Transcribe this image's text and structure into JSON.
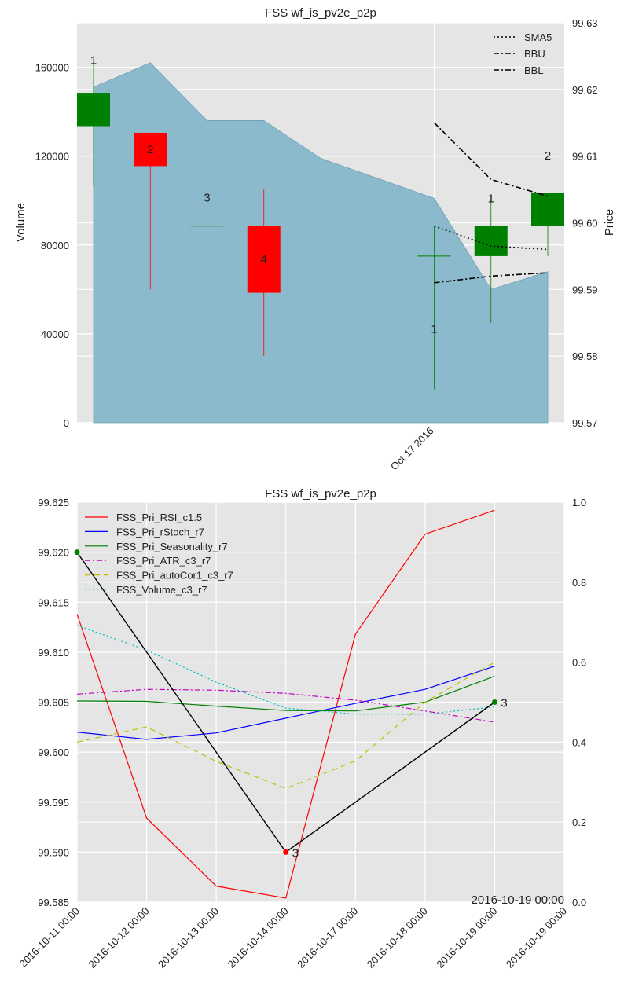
{
  "chart_data": [
    {
      "type": "candlestick",
      "title": "FSS wf_is_pv2e_p2p",
      "ylabel_left": "Volume",
      "ylabel_right": "Price",
      "ylim_left": [
        0,
        180000
      ],
      "ylim_right": [
        99.57,
        99.63
      ],
      "left_ticks": [
        "0",
        "40000",
        "80000",
        "120000",
        "160000"
      ],
      "right_ticks": [
        "99.57",
        "99.58",
        "99.59",
        "99.60",
        "99.61",
        "99.62",
        "99.63"
      ],
      "x_tick_labels": [
        "Oct 17 2016"
      ],
      "volume_area": [
        {
          "x": 0,
          "v": 151000
        },
        {
          "x": 1,
          "v": 162000
        },
        {
          "x": 2,
          "v": 136000
        },
        {
          "x": 3,
          "v": 136000
        },
        {
          "x": 4,
          "v": 119000
        },
        {
          "x": 6,
          "v": 101000
        },
        {
          "x": 7,
          "v": 60000
        },
        {
          "x": 8,
          "v": 68000
        }
      ],
      "candles": [
        {
          "x": -0.3,
          "open": 99.6195,
          "close": 99.6145,
          "high": 99.6245,
          "low": 99.6055,
          "color": "green",
          "label": "1"
        },
        {
          "x": 0.7,
          "open": 99.6135,
          "close": 99.6085,
          "high": 99.6135,
          "low": 99.59,
          "color": "red",
          "label": "2"
        },
        {
          "x": 1.7,
          "open": 99.5995,
          "close": 99.5995,
          "high": 99.6045,
          "low": 99.585,
          "color": "green",
          "label": "3"
        },
        {
          "x": 2.7,
          "open": 99.5995,
          "close": 99.5895,
          "high": 99.605,
          "low": 99.58,
          "color": "red",
          "label": "4"
        },
        {
          "x": 5.7,
          "open": 99.595,
          "close": 99.595,
          "high": 99.5995,
          "low": 99.575,
          "color": "green",
          "label": "1"
        },
        {
          "x": 6.7,
          "open": 99.595,
          "close": 99.5995,
          "high": 99.604,
          "low": 99.585,
          "color": "green",
          "label": "1"
        },
        {
          "x": 7.7,
          "open": 99.5995,
          "close": 99.6045,
          "high": 99.6045,
          "low": 99.595,
          "color": "green",
          "label": "2"
        }
      ],
      "series": [
        {
          "name": "SMA5",
          "style": "dotted",
          "points": [
            [
              6,
              99.5995
            ],
            [
              7,
              99.5965
            ],
            [
              8,
              99.596
            ]
          ]
        },
        {
          "name": "BBU",
          "style": "dashdot",
          "points": [
            [
              6,
              99.615
            ],
            [
              7,
              99.6065
            ],
            [
              8,
              99.604
            ]
          ]
        },
        {
          "name": "BBL",
          "style": "dashdot",
          "points": [
            [
              6,
              99.591
            ],
            [
              7,
              99.592
            ],
            [
              8,
              99.5925
            ]
          ]
        }
      ],
      "legend_position": "top-right",
      "grid": true
    },
    {
      "type": "line",
      "title": "FSS wf_is_pv2e_p2p",
      "ylim_left": [
        99.585,
        99.625
      ],
      "ylim_right": [
        0,
        1
      ],
      "left_ticks": [
        "99.585",
        "99.590",
        "99.595",
        "99.600",
        "99.605",
        "99.610",
        "99.615",
        "99.620",
        "99.625"
      ],
      "right_ticks": [
        "0.0",
        "0.2",
        "0.4",
        "0.6",
        "0.8",
        "1.0"
      ],
      "x_tick_labels": [
        "2016-10-11 00:00",
        "2016-10-12 00:00",
        "2016-10-13 00:00",
        "2016-10-14 00:00",
        "2016-10-17 00:00",
        "2016-10-18 00:00",
        "2016-10-19 00:00",
        "2016-10-19 00:00"
      ],
      "series": [
        {
          "name": "FSS_Pri_RSI_c1.5",
          "color": "#ff0000",
          "style": "solid",
          "values": [
            0.72,
            0.21,
            0.04,
            0.01,
            0.67,
            0.92,
            0.98
          ]
        },
        {
          "name": "FSS_Pri_rStoch_r7",
          "color": "#0000ff",
          "style": "solid",
          "values": [
            0.425,
            0.407,
            0.423,
            0.46,
            0.497,
            0.532,
            0.59
          ]
        },
        {
          "name": "FSS_Pri_Seasonality_r7",
          "color": "#008000",
          "style": "solid",
          "values": [
            0.503,
            0.502,
            0.49,
            0.479,
            0.478,
            0.5,
            0.565
          ]
        },
        {
          "name": "FSS_Pri_ATR_c3_r7",
          "color": "#bf00bf",
          "style": "dashdot",
          "values": [
            0.52,
            0.532,
            0.53,
            0.522,
            0.505,
            0.478,
            0.45
          ]
        },
        {
          "name": "FSS_Pri_autoCor1_c3_r7",
          "color": "#bfbf00",
          "style": "dashed",
          "values": [
            0.4,
            0.438,
            0.352,
            0.284,
            0.353,
            0.5,
            0.6
          ]
        },
        {
          "name": "FSS_Volume_c3_r7",
          "color": "#00bfbf",
          "style": "dotted",
          "values": [
            0.692,
            0.63,
            0.55,
            0.485,
            0.47,
            0.47,
            0.488
          ]
        }
      ],
      "price_path": {
        "color": "#000000",
        "points": [
          [
            0,
            99.62
          ],
          [
            3,
            99.59
          ],
          [
            6,
            99.605
          ]
        ]
      },
      "markers": [
        {
          "x": 0,
          "y": 99.62,
          "color": "#008000",
          "label": ""
        },
        {
          "x": 3,
          "y": 99.59,
          "color": "#ff0000",
          "label": "3"
        },
        {
          "x": 6,
          "y": 99.605,
          "color": "#008000",
          "label": "3"
        }
      ],
      "corner_annotation": "2016-10-19 00:00",
      "legend_position": "top-left",
      "grid": true
    }
  ]
}
